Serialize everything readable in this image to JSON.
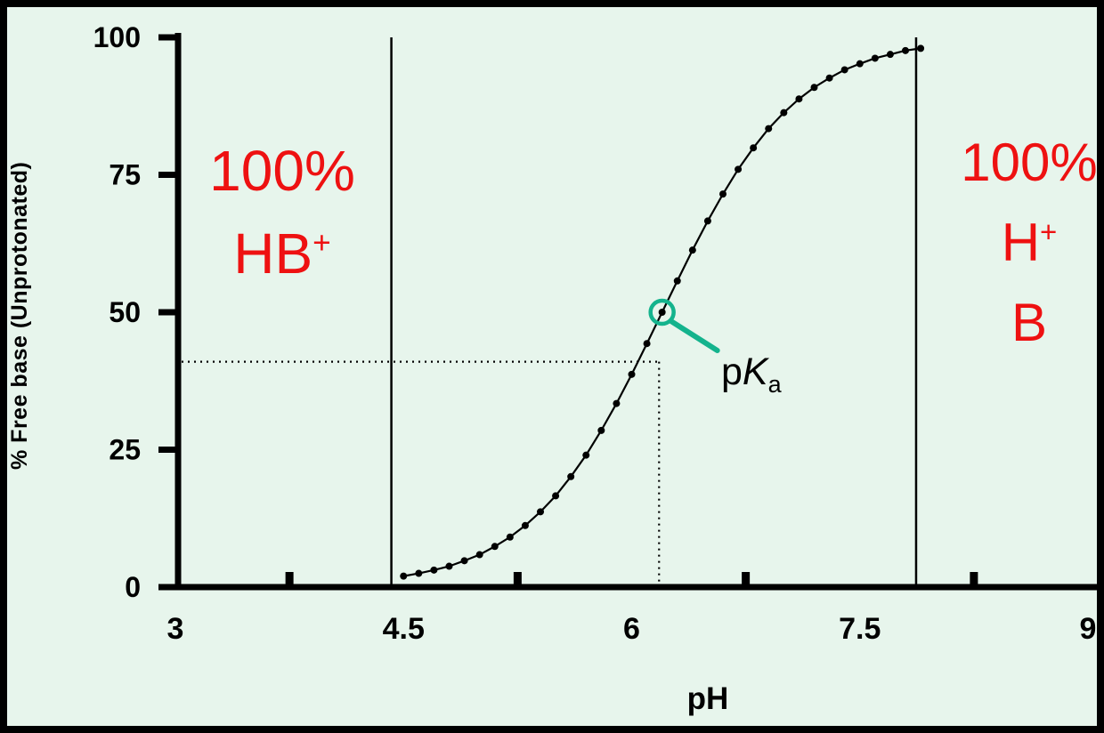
{
  "colors": {
    "background": "#e7f5ec",
    "curve": "#000000",
    "accent_red": "#ee1111",
    "accent_teal": "#14b38d"
  },
  "chart_data": {
    "type": "line",
    "title": "",
    "xlabel": "pH",
    "ylabel": "% Free base (Unprotonated)",
    "xlim": [
      3,
      9
    ],
    "ylim": [
      0,
      100
    ],
    "grid": false,
    "x_tick_values": [
      3,
      4.5,
      6,
      7.5,
      9
    ],
    "x_tick_labels": [
      "3",
      "4.5",
      "6",
      "7.5",
      "9"
    ],
    "x_minor_tick_values": [
      3.75,
      5.25,
      6.75,
      8.25
    ],
    "y_tick_values": [
      0,
      25,
      50,
      75,
      100
    ],
    "y_tick_labels": [
      "0",
      "25",
      "50",
      "75",
      "100"
    ],
    "pka": 6.2,
    "series": [
      {
        "name": "percent-free-base",
        "marker": "dot",
        "color": "#000000",
        "x": [
          4.5,
          4.6,
          4.7,
          4.8,
          4.9,
          5.0,
          5.1,
          5.2,
          5.3,
          5.4,
          5.5,
          5.6,
          5.7,
          5.8,
          5.9,
          6.0,
          6.1,
          6.2,
          6.3,
          6.4,
          6.5,
          6.6,
          6.7,
          6.8,
          6.9,
          7.0,
          7.1,
          7.2,
          7.3,
          7.4,
          7.5,
          7.6,
          7.7,
          7.8,
          7.9
        ],
        "y": [
          2.0,
          2.5,
          3.1,
          3.8,
          4.8,
          5.9,
          7.4,
          9.1,
          11.2,
          13.7,
          16.6,
          20.1,
          24.0,
          28.5,
          33.4,
          38.7,
          44.3,
          50.0,
          55.7,
          61.3,
          66.6,
          71.5,
          76.0,
          79.9,
          83.4,
          86.3,
          88.8,
          90.9,
          92.6,
          94.1,
          95.2,
          96.2,
          96.9,
          97.6,
          98.0
        ]
      }
    ]
  },
  "annotations": {
    "left_region": {
      "line1": "100%",
      "line2_base": "HB",
      "line2_sup": "+",
      "color": "#ee1111"
    },
    "right_region": {
      "line1": "100%",
      "line2_base": "H",
      "line2_sup": "+",
      "line3": "B",
      "color": "#ee1111"
    },
    "pka_label": {
      "prefix": "p",
      "italic": "K",
      "sub": "a"
    },
    "vline_left_ph": 4.42,
    "vline_right_ph": 7.87,
    "dotted_h_value": 41,
    "dotted_v_ph": 6.18,
    "marker": {
      "ph": 6.2,
      "value": 50,
      "color": "#14b38d"
    }
  }
}
